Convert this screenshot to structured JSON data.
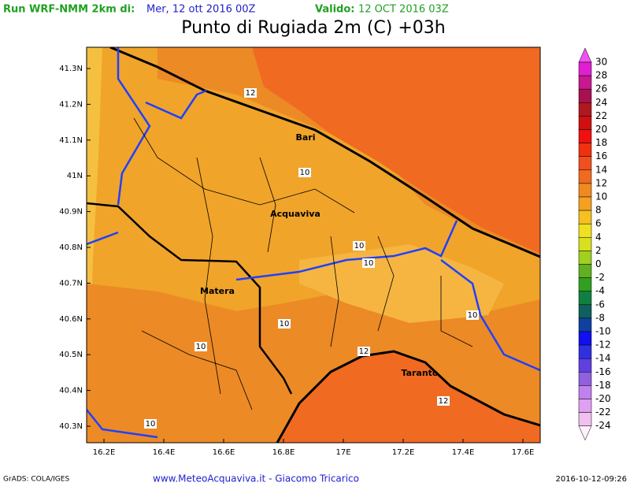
{
  "header": {
    "run_label": "Run WRF-NMM 2km di:",
    "run_date": "Mer, 12 ott 2016 00Z",
    "valid_label": "Valido:",
    "valid_date": "12 OCT 2016 03Z",
    "title": "Punto di Rugiada 2m (C) +03h"
  },
  "map": {
    "lat_labels": [
      "41.3N",
      "41.2N",
      "41.1N",
      "41N",
      "40.9N",
      "40.8N",
      "40.7N",
      "40.6N",
      "40.5N",
      "40.4N",
      "40.3N"
    ],
    "lon_labels": [
      "16.2E",
      "16.4E",
      "16.6E",
      "16.8E",
      "17E",
      "17.2E",
      "17.4E",
      "17.6E"
    ],
    "cities": [
      "Bari",
      "Acquaviva",
      "Matera",
      "Taranto"
    ],
    "contour_labels": [
      "12",
      "10",
      "10",
      "10",
      "10",
      "10",
      "10",
      "12",
      "12",
      "10"
    ]
  },
  "colorbar": {
    "labels": [
      30,
      28,
      26,
      24,
      22,
      20,
      18,
      16,
      14,
      12,
      10,
      8,
      6,
      4,
      2,
      0,
      -2,
      -4,
      -6,
      -8,
      -10,
      -12,
      -14,
      -16,
      -18,
      -20,
      -22,
      -24
    ],
    "colors": [
      "#f050f0",
      "#e020d0",
      "#c81890",
      "#a81050",
      "#b01820",
      "#d01010",
      "#f01010",
      "#f03010",
      "#f05020",
      "#f06a20",
      "#f08a20",
      "#f5a020",
      "#f5c020",
      "#f0e020",
      "#d8e020",
      "#a0d020",
      "#60b020",
      "#30a020",
      "#108040",
      "#106060",
      "#1040a0",
      "#1010f0",
      "#3030e0",
      "#6040e0",
      "#9060e0",
      "#c080f0",
      "#e0a0f0",
      "#f0c0f0",
      "#fff0ff"
    ]
  },
  "footer": {
    "left": "GrADS: COLA/IGES",
    "center": "www.MeteoAcquaviva.it - Giacomo Tricarico",
    "right": "2016-10-12-09:26"
  }
}
